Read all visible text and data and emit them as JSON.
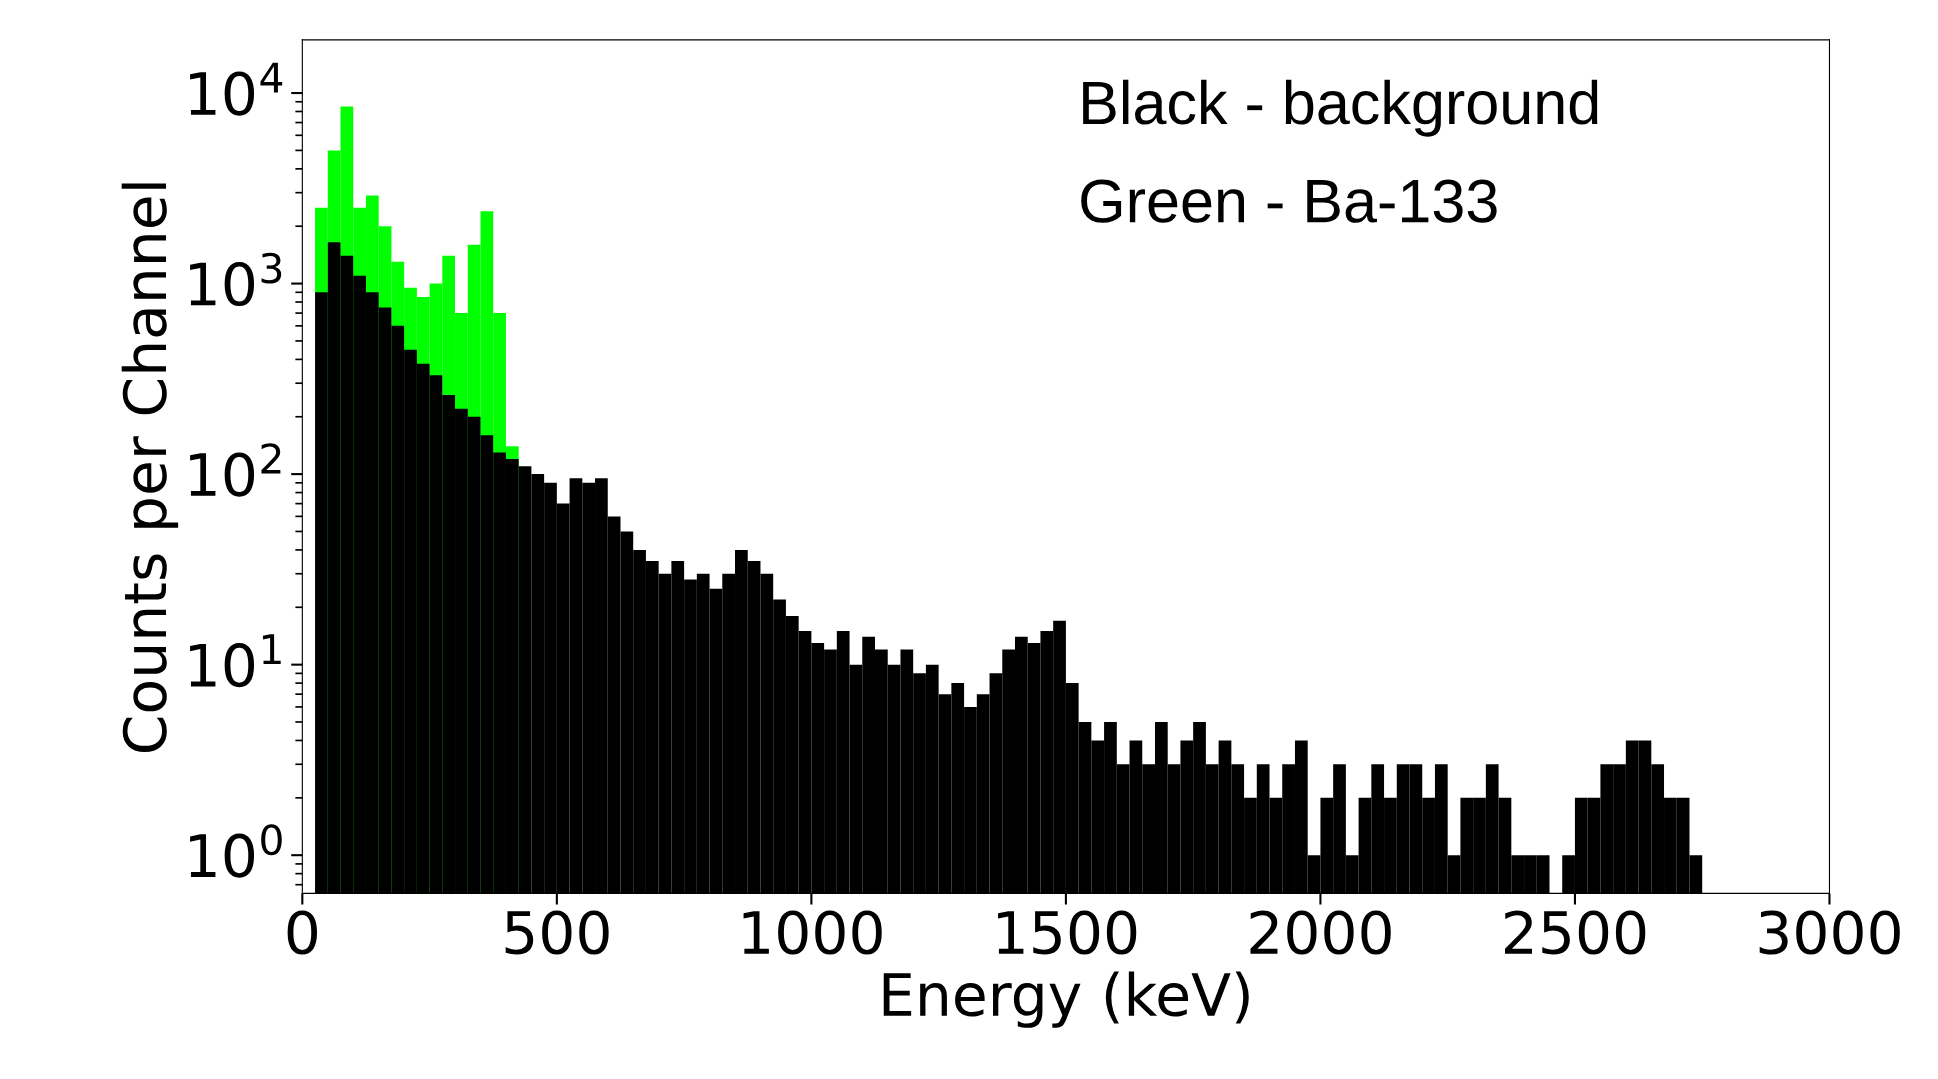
{
  "chart_data": {
    "type": "histogram",
    "xlabel": "Energy (keV)",
    "ylabel": "Counts per Channel",
    "bins": [
      25,
      50,
      75,
      100,
      125,
      150,
      175,
      200,
      225,
      250,
      275,
      300,
      325,
      350,
      375,
      400,
      425,
      450,
      475,
      500,
      525,
      550,
      575,
      600,
      625,
      650,
      675,
      700,
      725,
      750,
      775,
      800,
      825,
      850,
      875,
      900,
      925,
      950,
      975,
      1000,
      1025,
      1050,
      1075,
      1100,
      1125,
      1150,
      1175,
      1200,
      1225,
      1250,
      1275,
      1300,
      1325,
      1350,
      1375,
      1400,
      1425,
      1450,
      1475,
      1500,
      1525,
      1550,
      1575,
      1600,
      1625,
      1650,
      1675,
      1700,
      1725,
      1750,
      1775,
      1800,
      1825,
      1850,
      1875,
      1900,
      1925,
      1950,
      1975,
      2000,
      2025,
      2050,
      2075,
      2100,
      2125,
      2150,
      2175,
      2200,
      2225,
      2250,
      2275,
      2300,
      2325,
      2350,
      2375,
      2400,
      2425,
      2450,
      2475,
      2500,
      2525,
      2550,
      2575,
      2600,
      2625,
      2650,
      2675,
      2700,
      2725,
      2750
    ],
    "series": [
      {
        "color": "#00ff00",
        "values": [
          2500,
          5000,
          8500,
          2500,
          2900,
          2000,
          1300,
          950,
          850,
          1000,
          1400,
          700,
          1600,
          2400,
          700,
          140,
          null,
          null,
          null,
          null,
          null,
          null,
          null,
          null,
          null,
          null,
          null,
          null,
          null,
          null,
          null,
          null,
          null,
          null,
          null,
          null,
          null,
          null,
          null,
          null,
          null,
          null,
          null,
          null,
          null,
          null,
          null,
          null,
          null,
          null,
          null,
          null,
          null,
          null,
          null,
          null,
          null,
          null,
          null,
          null,
          null,
          null,
          null,
          null,
          null,
          null,
          null,
          null,
          null,
          null,
          null,
          null,
          null,
          null,
          null,
          null,
          null,
          null,
          null,
          null,
          null,
          null,
          null,
          null,
          null,
          null,
          null,
          null,
          null,
          null,
          null,
          null,
          null,
          null,
          null,
          null,
          null,
          null,
          null,
          null,
          null,
          null,
          null,
          null,
          null,
          null,
          null,
          null,
          null
        ]
      },
      {
        "color": "#000000",
        "values": [
          900,
          1650,
          1400,
          1100,
          900,
          750,
          600,
          450,
          380,
          330,
          260,
          220,
          200,
          160,
          130,
          120,
          110,
          100,
          90,
          70,
          95,
          90,
          95,
          60,
          50,
          40,
          35,
          30,
          35,
          28,
          30,
          25,
          30,
          40,
          35,
          30,
          22,
          18,
          15,
          13,
          12,
          15,
          10,
          14,
          12,
          10,
          12,
          9,
          10,
          7,
          8,
          6,
          7,
          9,
          12,
          14,
          13,
          15,
          17,
          8,
          5,
          4,
          5,
          3,
          4,
          3,
          5,
          3,
          4,
          5,
          3,
          4,
          3,
          2,
          3,
          2,
          3,
          4,
          1,
          2,
          3,
          1,
          2,
          3,
          2,
          3,
          3,
          2,
          3,
          1,
          2,
          2,
          3,
          2,
          1,
          1,
          1,
          null,
          1,
          2,
          2,
          3,
          3,
          4,
          4,
          3,
          2,
          2,
          1
        ]
      }
    ],
    "log": "y",
    "xlim": [
      0,
      3000
    ],
    "xticks": [
      0,
      500,
      1000,
      1500,
      2000,
      2500,
      3000
    ],
    "ylim": [
      0.63,
      19000
    ],
    "yticks": [
      {
        "value": 1,
        "label": "10$^{0}$"
      },
      {
        "value": 10,
        "label": "10$^{1}$"
      },
      {
        "value": 100,
        "label": "10$^{2}$"
      },
      {
        "value": 1000,
        "label": "10$^{3}$"
      },
      {
        "value": 10000,
        "label": "10$^{4}$"
      }
    ],
    "grid": false,
    "annotations": [
      "Black - background",
      "Green - Ba-133"
    ]
  }
}
